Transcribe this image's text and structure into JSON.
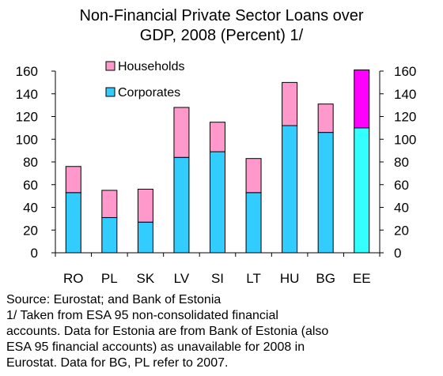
{
  "chart_data": {
    "type": "bar",
    "stacked": true,
    "title_lines": [
      "Non-Financial Private Sector Loans over",
      "GDP, 2008 (Percent) 1/"
    ],
    "categories": [
      "RO",
      "PL",
      "SK",
      "LV",
      "SI",
      "LT",
      "HU",
      "BG",
      "EE"
    ],
    "series": [
      {
        "name": "Corporates",
        "values": [
          53,
          31,
          27,
          84,
          89,
          53,
          112,
          106,
          110
        ],
        "color": "#33ccff"
      },
      {
        "name": "Households",
        "values": [
          23,
          24,
          29,
          44,
          26,
          30,
          38,
          25,
          51
        ],
        "color": "#ff99cc"
      }
    ],
    "highlight": {
      "category": "EE",
      "colors": {
        "Corporates": "#33ffff",
        "Households": "#ff00ff"
      }
    },
    "ylim": [
      0,
      160
    ],
    "yticks": [
      "0",
      "20",
      "40",
      "60",
      "80",
      "100",
      "120",
      "140",
      "160"
    ],
    "ytick_values": [
      0,
      20,
      40,
      60,
      80,
      100,
      120,
      140,
      160
    ],
    "right_axis": true,
    "legend_position": "top-left",
    "grid": false
  },
  "notes": [
    "Source: Eurostat; and Bank of Estonia",
    "1/ Taken from ESA 95  non-consolidated financial",
    "accounts. Data for Estonia are from Bank of Estonia (also",
    "ESA 95 financial accounts) as unavailable for 2008 in",
    "Eurostat. Data for BG, PL refer to 2007."
  ]
}
